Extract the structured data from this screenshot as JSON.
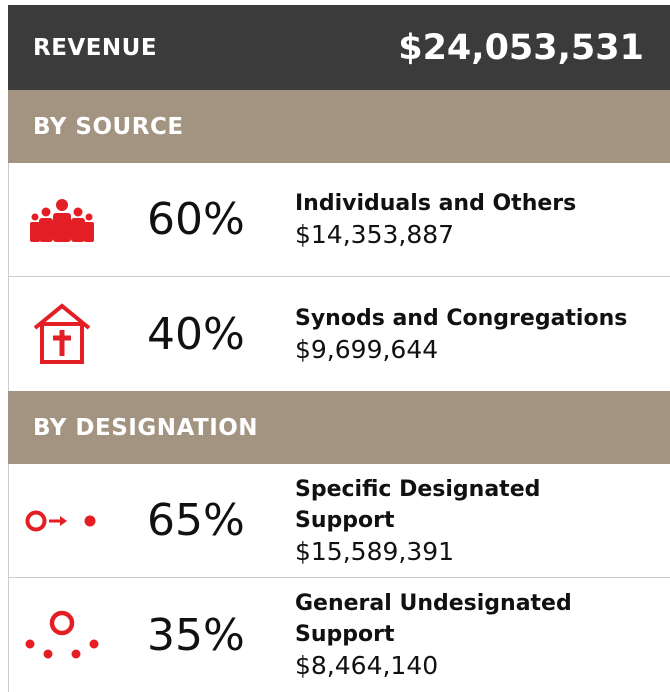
{
  "header": {
    "title": "REVENUE",
    "total": "$24,053,531"
  },
  "sections": [
    {
      "title": "BY SOURCE",
      "items": [
        {
          "percent": "60%",
          "label": "Individuals and Others",
          "amount": "$14,353,887"
        },
        {
          "percent": "40%",
          "label": "Synods and Congregations",
          "amount": "$9,699,644"
        }
      ]
    },
    {
      "title": "BY DESIGNATION",
      "items": [
        {
          "percent": "65%",
          "label": "Specific Designated Support",
          "amount": "$15,589,391"
        },
        {
          "percent": "35%",
          "label": "General Undesignated Support",
          "amount": "$8,464,140"
        }
      ]
    }
  ]
}
